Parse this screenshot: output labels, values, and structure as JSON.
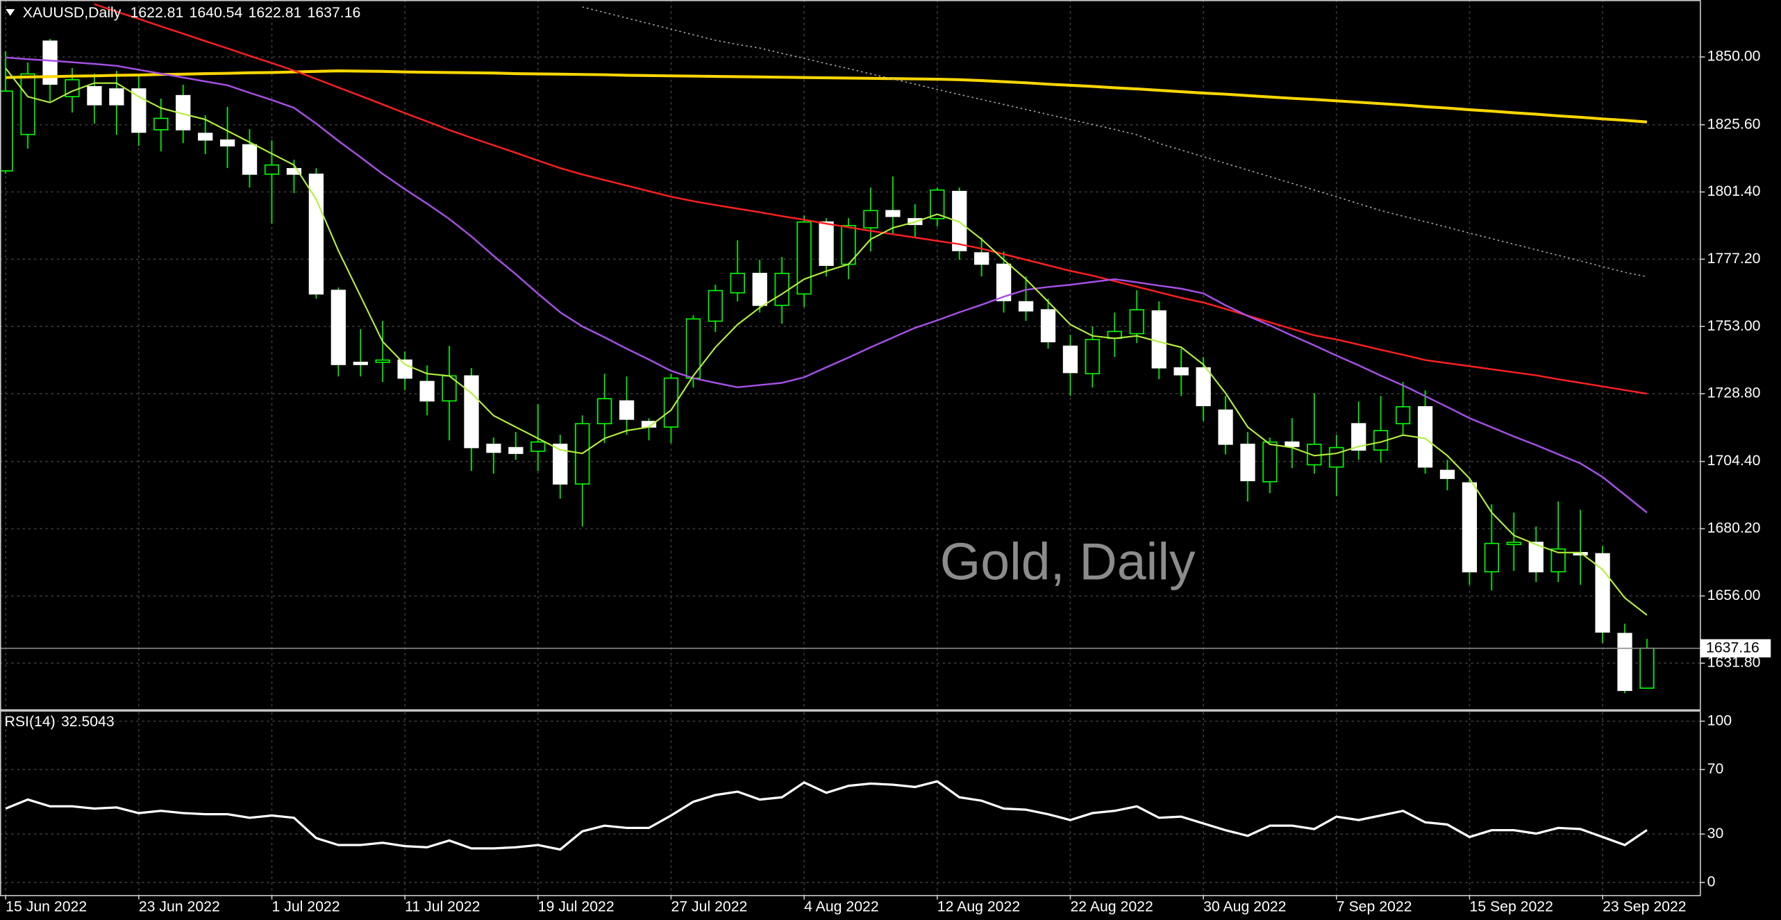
{
  "chart_data": [
    {
      "type": "candlestick",
      "title": "XAUUSD,Daily",
      "watermark": "Gold, Daily",
      "categories": [
        "15 Jun 2022",
        null,
        null,
        null,
        null,
        null,
        "23 Jun 2022",
        null,
        null,
        null,
        null,
        null,
        "1 Jul 2022",
        null,
        null,
        null,
        null,
        null,
        "11 Jul 2022",
        null,
        null,
        null,
        null,
        null,
        "19 Jul 2022",
        null,
        null,
        null,
        null,
        null,
        "27 Jul 2022",
        null,
        null,
        null,
        null,
        null,
        "4 Aug 2022",
        null,
        null,
        null,
        null,
        null,
        "12 Aug 2022",
        null,
        null,
        null,
        null,
        null,
        "22 Aug 2022",
        null,
        null,
        null,
        null,
        null,
        "30 Aug 2022",
        null,
        null,
        null,
        null,
        null,
        "7 Sep 2022",
        null,
        null,
        null,
        null,
        null,
        "15 Sep 2022",
        null,
        null,
        null,
        null,
        null,
        "23 Sep 2022",
        null,
        null
      ],
      "open": [
        1809.0,
        1822.1,
        1855.7,
        1835.7,
        1839.3,
        1838.5,
        1838.5,
        1823.8,
        1836.1,
        1822.5,
        1820.1,
        1818.4,
        1807.8,
        1809.8,
        1807.8,
        1766.0,
        1740.1,
        1740.1,
        1740.9,
        1733.2,
        1726.2,
        1735.2,
        1710.6,
        1709.4,
        1708.1,
        1710.6,
        1696.3,
        1718.0,
        1726.2,
        1718.8,
        1716.8,
        1734.4,
        1754.9,
        1765.1,
        1772.1,
        1760.6,
        1764.7,
        1790.6,
        1775.4,
        1788.5,
        1794.7,
        1791.8,
        1791.8,
        1801.6,
        1779.5,
        1775.4,
        1761.9,
        1759.0,
        1745.9,
        1736.0,
        1748.7,
        1750.4,
        1758.6,
        1738.1,
        1738.1,
        1722.9,
        1710.6,
        1697.1,
        1711.4,
        1703.2,
        1702.4,
        1718.0,
        1708.5,
        1718.0,
        1724.1,
        1701.2,
        1696.7,
        1664.7,
        1674.5,
        1675.3,
        1664.7,
        1671.6,
        1671.2,
        1642.5,
        1622.81
      ],
      "high": [
        1852,
        1848,
        1856.5,
        1846,
        1844,
        1845,
        1843,
        1835,
        1840,
        1829,
        1832,
        1824,
        1820,
        1813,
        1810,
        1767,
        1752,
        1755,
        1744,
        1739,
        1746,
        1738,
        1713,
        1715,
        1725,
        1714,
        1721,
        1736,
        1735,
        1720,
        1736,
        1757,
        1768,
        1784,
        1777,
        1778,
        1793,
        1792,
        1792,
        1803,
        1807,
        1797,
        1803,
        1803,
        1785,
        1780,
        1771,
        1763,
        1750,
        1753,
        1758,
        1766,
        1762,
        1745,
        1742,
        1728,
        1715,
        1713,
        1720,
        1729,
        1714,
        1726,
        1728,
        1733,
        1730,
        1705,
        1698,
        1689,
        1686,
        1681,
        1690,
        1687,
        1674,
        1646,
        1640.54
      ],
      "low": [
        1808,
        1817,
        1834,
        1830,
        1826,
        1822,
        1818,
        1816,
        1819,
        1815,
        1810,
        1803,
        1790,
        1801,
        1763,
        1735,
        1735,
        1733,
        1730,
        1721,
        1712,
        1701,
        1700,
        1705,
        1701,
        1691,
        1681,
        1711,
        1714,
        1712,
        1711,
        1731,
        1751,
        1762,
        1758,
        1754,
        1760,
        1771,
        1770,
        1780,
        1786,
        1785,
        1789,
        1777,
        1771,
        1758,
        1755,
        1745,
        1728,
        1731,
        1742,
        1747,
        1734,
        1728,
        1719,
        1707,
        1690,
        1693,
        1702,
        1700,
        1692,
        1705,
        1704,
        1714,
        1700,
        1694,
        1660,
        1658,
        1665,
        1661,
        1661,
        1660,
        1639,
        1621,
        1622.81
      ],
      "close": [
        1837.7,
        1843.9,
        1840.2,
        1841.8,
        1832.8,
        1832.8,
        1822.9,
        1827.9,
        1823.8,
        1820.1,
        1818.0,
        1807.8,
        1811.1,
        1807.8,
        1764.7,
        1739.3,
        1739.3,
        1740.9,
        1734.4,
        1726.2,
        1735.2,
        1709.4,
        1707.7,
        1707.3,
        1711.4,
        1696.3,
        1718.0,
        1727.0,
        1719.6,
        1716.8,
        1734.4,
        1755.7,
        1765.9,
        1772.1,
        1760.6,
        1772.1,
        1790.6,
        1775.0,
        1789.3,
        1794.7,
        1792.6,
        1789.7,
        1802.1,
        1780.3,
        1775.4,
        1762.3,
        1758.6,
        1747.5,
        1736.4,
        1748.3,
        1751.2,
        1759.0,
        1738.1,
        1735.6,
        1724.5,
        1710.6,
        1697.5,
        1711.4,
        1709.8,
        1710.6,
        1709.4,
        1708.5,
        1715.5,
        1724.1,
        1702.4,
        1698.3,
        1664.7,
        1674.9,
        1675.3,
        1664.7,
        1672.9,
        1670.8,
        1643.0,
        1622.0,
        1637.16
      ],
      "up_color": "#00ff00",
      "bull_fill": "#000000",
      "bear_fill": "#ffffff",
      "ylim": [
        1615.4,
        1870.5
      ],
      "yticks": [
        {
          "value": 1850,
          "label": "1850.00"
        },
        {
          "value": 1825.6,
          "label": "1825.60"
        },
        {
          "value": 1801.4,
          "label": "1801.40"
        },
        {
          "value": 1777.2,
          "label": "1777.20"
        },
        {
          "value": 1753,
          "label": "1753.00"
        },
        {
          "value": 1728.8,
          "label": "1728.80"
        },
        {
          "value": 1704.4,
          "label": "1704.40"
        },
        {
          "value": 1680.2,
          "label": "1680.20"
        },
        {
          "value": 1656,
          "label": "1656.00"
        },
        {
          "value": 1631.8,
          "label": "1631.80"
        }
      ],
      "grid": true,
      "last_price_line": true,
      "overlays": [
        {
          "color": "#ffd700",
          "dashed": false,
          "values": [
            1842.6,
            1842.8,
            1842.9,
            1843.1,
            1843.2,
            1843.4,
            1843.5,
            1843.7,
            1843.8,
            1844.0,
            1844.1,
            1844.3,
            1844.4,
            1844.6,
            1844.8,
            1845.0,
            1844.9,
            1844.8,
            1844.6,
            1844.5,
            1844.4,
            1844.3,
            1844.2,
            1844.0,
            1843.9,
            1843.8,
            1843.7,
            1843.6,
            1843.4,
            1843.3,
            1843.2,
            1843.1,
            1843.0,
            1842.9,
            1842.8,
            1842.7,
            1842.6,
            1842.5,
            1842.4,
            1842.3,
            1842.2,
            1842.1,
            1842.0,
            1841.8,
            1841.5,
            1841.1,
            1840.7,
            1840.2,
            1839.8,
            1839.4,
            1838.9,
            1838.5,
            1838.0,
            1837.5,
            1837.0,
            1836.6,
            1836.1,
            1835.6,
            1835.1,
            1834.7,
            1834.2,
            1833.7,
            1833.2,
            1832.7,
            1832.1,
            1831.6,
            1831.0,
            1830.5,
            1829.9,
            1829.4,
            1828.8,
            1828.3,
            1827.7,
            1827.2,
            1826.6
          ]
        },
        {
          "color": "#a8a8a8",
          "dashed": true,
          "values": [
            null,
            null,
            null,
            null,
            null,
            null,
            null,
            null,
            null,
            null,
            null,
            null,
            null,
            null,
            null,
            null,
            null,
            null,
            null,
            null,
            null,
            null,
            null,
            null,
            null,
            null,
            1868,
            1866,
            1864,
            1862,
            1860,
            1858,
            1856,
            1854.5,
            1853.2,
            1851.3,
            1849.5,
            1847.6,
            1845.8,
            1843.9,
            1842.1,
            1840.2,
            1838.3,
            1836.5,
            1834.7,
            1832.9,
            1831.1,
            1829.3,
            1827.5,
            1825.7,
            1823.9,
            1822.0,
            1818.9,
            1816.5,
            1814.1,
            1811.7,
            1809.3,
            1806.9,
            1804.5,
            1802.1,
            1799.7,
            1797.2,
            1794.7,
            1792.7,
            1790.7,
            1788.7,
            1786.6,
            1784.6,
            1782.6,
            1780.6,
            1778.6,
            1776.6,
            1774.5,
            1772.5,
            1770.9
          ]
        },
        {
          "color": "#ff2020",
          "dashed": false,
          "values": [
            null,
            null,
            null,
            null,
            1869,
            1866.3,
            1863.7,
            1861,
            1858.4,
            1855.7,
            1853.1,
            1850.4,
            1847.8,
            1845.1,
            1842.1,
            1839,
            1836,
            1832.9,
            1829.8,
            1826.8,
            1823.7,
            1820.9,
            1818.2,
            1815.5,
            1812.7,
            1810,
            1807.7,
            1805.7,
            1803.7,
            1801.7,
            1799.7,
            1798.1,
            1796.7,
            1795.4,
            1794.1,
            1792.7,
            1791.4,
            1790,
            1788.7,
            1787.4,
            1786.2,
            1785,
            1783.8,
            1782.6,
            1781,
            1779,
            1777,
            1775,
            1773,
            1771.3,
            1769.3,
            1767.3,
            1765.3,
            1763.3,
            1761.6,
            1759.3,
            1756.9,
            1754.5,
            1752.1,
            1749.8,
            1748.3,
            1746.5,
            1744.6,
            1742.8,
            1740.9,
            1739.8,
            1738.7,
            1737.6,
            1736.5,
            1735.4,
            1734,
            1732.7,
            1731.4,
            1730.1,
            1728.8
          ]
        },
        {
          "color": "#a650e6",
          "dashed": false,
          "values": [
            1849.8,
            1849.2,
            1848.7,
            1848.1,
            1847.5,
            1846.8,
            1845.4,
            1844,
            1842.6,
            1841.2,
            1839.8,
            1837.1,
            1834.5,
            1831.7,
            1826,
            1819.8,
            1813.9,
            1807.9,
            1802.4,
            1797.2,
            1791.7,
            1785.4,
            1778.4,
            1771.8,
            1764.8,
            1758.1,
            1753.0,
            1749.1,
            1745.0,
            1741.1,
            1737.0,
            1734.4,
            1732.7,
            1731.1,
            1731.9,
            1732.7,
            1734.7,
            1738.3,
            1741.8,
            1745.5,
            1749.0,
            1752.5,
            1755.2,
            1758.1,
            1760.8,
            1763.7,
            1766.2,
            1767.2,
            1768.0,
            1769.0,
            1770.0,
            1768.9,
            1767.7,
            1766.6,
            1764.9,
            1760.6,
            1756.8,
            1753.4,
            1749.7,
            1746.2,
            1742.5,
            1739.0,
            1735.3,
            1731.8,
            1727.9,
            1724.0,
            1720.0,
            1716.7,
            1713.4,
            1710.3,
            1707.0,
            1703.7,
            1698.8,
            1692.4,
            1686.0
          ]
        },
        {
          "color": "#b4f03c",
          "dashed": false,
          "values": [
            1845.9,
            1835.7,
            1833.6,
            1837.7,
            1840.6,
            1840.6,
            1835.7,
            1831.6,
            1829.5,
            1827.5,
            1823.4,
            1819.3,
            1815.2,
            1811.1,
            1798.8,
            1780.3,
            1763.9,
            1747.5,
            1739.3,
            1736,
            1735.2,
            1729,
            1720.9,
            1716.8,
            1712.7,
            1708.6,
            1707.3,
            1712.7,
            1715.5,
            1716.8,
            1722.9,
            1735.2,
            1745.5,
            1753.7,
            1759.8,
            1764.7,
            1770,
            1772.9,
            1775.4,
            1784.4,
            1788.5,
            1790.6,
            1793.4,
            1790.6,
            1784.4,
            1777,
            1770,
            1761.9,
            1753.7,
            1749.6,
            1748.7,
            1749.6,
            1747.5,
            1745.5,
            1739.3,
            1729,
            1716.8,
            1710.6,
            1709.4,
            1706.5,
            1707.3,
            1709.8,
            1711.4,
            1713.9,
            1712.7,
            1706.5,
            1698.3,
            1686,
            1677.8,
            1674.5,
            1671.6,
            1671.6,
            1665.5,
            1655.3,
            1649.1
          ]
        }
      ]
    },
    {
      "type": "line",
      "title": "RSI(14)",
      "color": "#ffffff",
      "values": [
        45.8,
        51.4,
        47.2,
        47.2,
        45.8,
        46.5,
        43,
        44.4,
        43,
        42.3,
        42.3,
        40.1,
        41.5,
        40.1,
        27.5,
        23.2,
        23.2,
        24.6,
        22.5,
        21.8,
        26,
        21.1,
        21.1,
        21.8,
        23.2,
        20.4,
        31.7,
        35.2,
        33.8,
        33.8,
        41.5,
        50,
        54.2,
        56.3,
        51.4,
        52.8,
        62,
        55.6,
        59.9,
        61.3,
        60.6,
        59.2,
        62.7,
        52.8,
        50.7,
        45.8,
        45.1,
        42.3,
        38.7,
        43,
        44.4,
        47.2,
        40.1,
        40.8,
        36.6,
        32.4,
        28.9,
        35.2,
        35.2,
        33.1,
        40.8,
        38.7,
        41.5,
        44.4,
        37.3,
        35.9,
        28.2,
        32.4,
        32.4,
        30.3,
        33.8,
        33.1,
        28.2,
        23.2,
        32.5043
      ],
      "ylim": [
        -9.2,
        105.6
      ],
      "yticks": [
        100,
        70,
        30,
        0
      ],
      "grid": true
    }
  ]
}
